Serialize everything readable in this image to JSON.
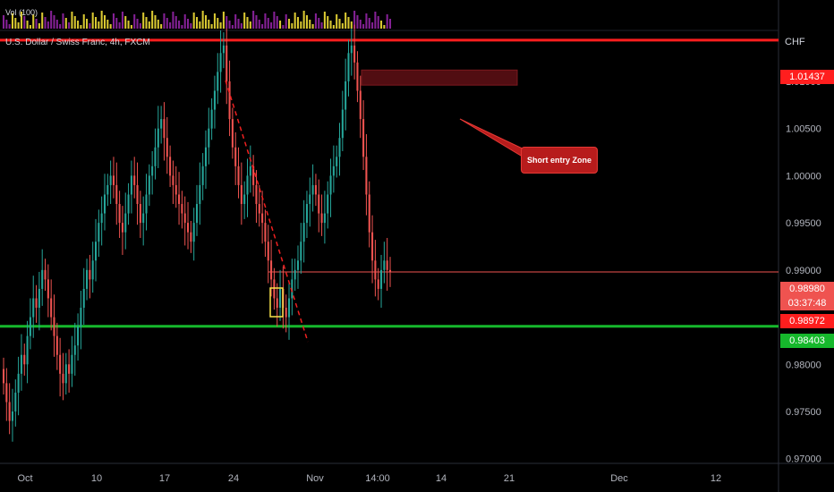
{
  "header": {
    "volume_label": "Vol (100)",
    "symbol_title": "U.S. Dollar / Swiss Franc, 4h, FXCM",
    "currency": "CHF"
  },
  "price_tags": {
    "resistance": "1.01437",
    "current_price": "0.98980",
    "countdown": "03:37:48",
    "previous": "0.98972",
    "support": "0.98403"
  },
  "annotation": {
    "text": "Short entry Zone"
  },
  "chart_data": {
    "type": "candlestick",
    "title": "U.S. Dollar / Swiss Franc, 4h, FXCM",
    "y_axis_labels": [
      "1.01000",
      "1.00500",
      "1.00000",
      "0.99500",
      "0.99000",
      "0.98500",
      "0.98000",
      "0.97500",
      "0.97000"
    ],
    "y_axis_values": [
      1.01,
      1.005,
      1.0,
      0.995,
      0.99,
      0.985,
      0.98,
      0.975,
      0.97
    ],
    "x_axis_labels": [
      "Oct",
      "10",
      "17",
      "24",
      "Nov",
      "14:00",
      "14",
      "21",
      "Dec",
      "12"
    ],
    "ylim": [
      0.9695,
      1.0154
    ],
    "horizontal_levels": [
      {
        "value": 1.01437,
        "color": "#ff1e1e"
      },
      {
        "value": 0.98403,
        "color": "#16b82c"
      },
      {
        "value": 0.9898,
        "color": "#ef5350"
      }
    ],
    "short_zone": {
      "top": 1.0112,
      "bottom": 1.0096
    },
    "candle_colors": {
      "up": "#26a69a",
      "down": "#ef5350"
    },
    "volume_colors": {
      "up": "#ffeb3b",
      "down": "#9c27b0"
    },
    "closes": [
      0.978,
      0.976,
      0.974,
      0.975,
      0.977,
      0.979,
      0.981,
      0.98,
      0.983,
      0.985,
      0.987,
      0.986,
      0.988,
      0.99,
      0.989,
      0.987,
      0.985,
      0.983,
      0.981,
      0.979,
      0.978,
      0.98,
      0.979,
      0.981,
      0.982,
      0.984,
      0.986,
      0.988,
      0.99,
      0.989,
      0.991,
      0.993,
      0.995,
      0.996,
      0.998,
      0.999,
      1.0,
      0.999,
      0.997,
      0.995,
      0.994,
      0.996,
      0.998,
      1.0,
      0.999,
      0.997,
      0.995,
      0.996,
      0.998,
      1.0,
      1.001,
      1.003,
      1.005,
      1.006,
      1.004,
      1.002,
      1.0,
      0.999,
      0.998,
      0.997,
      0.996,
      0.995,
      0.994,
      0.993,
      0.995,
      0.997,
      0.999,
      1.001,
      1.003,
      1.005,
      1.007,
      1.009,
      1.011,
      1.013,
      1.0138,
      1.01,
      1.006,
      1.003,
      1.001,
      0.999,
      0.997,
      0.998,
      1.0,
      1.001,
      0.999,
      0.997,
      0.996,
      0.995,
      0.993,
      0.991,
      0.989,
      0.987,
      0.986,
      0.988,
      0.986,
      0.985,
      0.987,
      0.989,
      0.99,
      0.991,
      0.993,
      0.995,
      0.997,
      0.998,
      0.999,
      0.998,
      0.996,
      0.995,
      0.996,
      0.998,
      1.0,
      1.001,
      1.002,
      1.004,
      1.007,
      1.01,
      1.013,
      1.0138,
      1.012,
      1.009,
      1.006,
      1.002,
      0.998,
      0.994,
      0.991,
      0.989,
      0.988,
      0.99,
      0.991,
      0.99,
      0.9898
    ]
  }
}
